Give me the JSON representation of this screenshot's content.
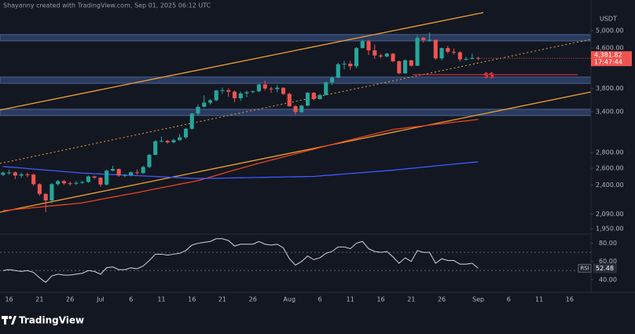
{
  "header": "Shayanny created with TradingView.com, Sep 01, 2025 06:12 UTC",
  "footer": "TradingView",
  "chart_data": {
    "type": "candlestick",
    "currency": "USDT",
    "annotation": "$$",
    "last_label": "4,381.82",
    "countdown": "17:47:44",
    "up_color": "#26a69a",
    "down_color": "#ef5350",
    "yscale": "log",
    "ylim": [
      1900,
      5780
    ],
    "yticks": [
      {
        "value": 5000,
        "label": "5,000.00"
      },
      {
        "value": 4600,
        "label": "4,600.00"
      },
      {
        "value": 3800,
        "label": "3,800.00"
      },
      {
        "value": 3400,
        "label": "3,400.00"
      },
      {
        "value": 2800,
        "label": "2,800.00"
      },
      {
        "value": 2600,
        "label": "2,600.00"
      },
      {
        "value": 2400,
        "label": "2,400.00"
      },
      {
        "value": 2090,
        "label": "2,090.00"
      },
      {
        "value": 1950,
        "label": "1,950.00"
      }
    ],
    "categories": [
      null,
      "16",
      null,
      null,
      null,
      null,
      "21",
      null,
      null,
      null,
      null,
      "26",
      null,
      null,
      null,
      null,
      "Jul",
      null,
      null,
      null,
      null,
      "6",
      null,
      null,
      null,
      null,
      "11",
      null,
      null,
      null,
      null,
      "16",
      null,
      null,
      null,
      null,
      "21",
      null,
      null,
      null,
      null,
      "26",
      null,
      null,
      null,
      null,
      null,
      "Aug",
      null,
      null,
      null,
      null,
      "6",
      null,
      null,
      null,
      null,
      "11",
      null,
      null,
      null,
      null,
      "16",
      null,
      null,
      null,
      null,
      "21",
      null,
      null,
      null,
      null,
      "26",
      null,
      null,
      null,
      null,
      null,
      "Sep",
      null,
      null,
      null,
      null,
      "6",
      null,
      null,
      null,
      null,
      "11",
      null,
      null,
      null,
      null,
      "16",
      null,
      null,
      null
    ],
    "open": [
      2520,
      2545,
      2548,
      2510,
      2525,
      2522,
      2410,
      2300,
      2230,
      2410,
      2445,
      2420,
      2415,
      2425,
      2435,
      2500,
      2485,
      2405,
      2570,
      2590,
      2510,
      2515,
      2550,
      2540,
      2615,
      2770,
      2955,
      2960,
      2940,
      2970,
      3010,
      3135,
      3370,
      3480,
      3550,
      3590,
      3760,
      3765,
      3740,
      3625,
      3710,
      3730,
      3745,
      3870,
      3795,
      3785,
      3810,
      3700,
      3490,
      3395,
      3500,
      3720,
      3610,
      3680,
      3910,
      3995,
      4260,
      4270,
      4220,
      4600,
      4750,
      4550,
      4440,
      4420,
      4480,
      4320,
      4080,
      4340,
      4230,
      4830,
      4780,
      4785,
      4380,
      4600,
      4520,
      4510,
      4360,
      4370,
      4390,
      null,
      null,
      null,
      null,
      null,
      null,
      null,
      null,
      null,
      null,
      null,
      null,
      null,
      null,
      null,
      null,
      null,
      null
    ],
    "high": [
      2560,
      2580,
      2560,
      2545,
      2545,
      2535,
      2420,
      2310,
      2425,
      2460,
      2460,
      2440,
      2445,
      2450,
      2510,
      2510,
      2490,
      2585,
      2630,
      2595,
      2530,
      2560,
      2585,
      2630,
      2785,
      2970,
      3020,
      2975,
      2990,
      3060,
      3150,
      3380,
      3520,
      3675,
      3610,
      3770,
      3810,
      3800,
      3760,
      3740,
      3760,
      3760,
      3880,
      3940,
      3830,
      3860,
      3810,
      3720,
      3510,
      3510,
      3730,
      3730,
      3700,
      3920,
      4020,
      4290,
      4330,
      4330,
      4620,
      4790,
      4780,
      4680,
      4480,
      4500,
      4490,
      4340,
      4360,
      4350,
      4880,
      4850,
      4955,
      4790,
      4610,
      4650,
      4590,
      4530,
      4410,
      4480,
      4410,
      null,
      null,
      null,
      null,
      null,
      null,
      null,
      null,
      null,
      null,
      null,
      null,
      null,
      null,
      null,
      null,
      null,
      null
    ],
    "low": [
      2505,
      2520,
      2470,
      2480,
      2490,
      2390,
      2280,
      2110,
      2200,
      2390,
      2400,
      2390,
      2400,
      2410,
      2425,
      2470,
      2380,
      2395,
      2560,
      2495,
      2490,
      2500,
      2520,
      2530,
      2600,
      2765,
      2940,
      2920,
      2925,
      2960,
      2990,
      3120,
      3340,
      3470,
      3520,
      3570,
      3700,
      3650,
      3560,
      3580,
      3640,
      3710,
      3730,
      3760,
      3720,
      3730,
      3680,
      3480,
      3355,
      3380,
      3490,
      3590,
      3600,
      3670,
      3860,
      3990,
      4160,
      4150,
      4180,
      4590,
      4450,
      4370,
      4380,
      4400,
      4300,
      4060,
      4070,
      4210,
      4220,
      4720,
      4740,
      4350,
      4340,
      4480,
      4460,
      4320,
      4330,
      4360,
      4340,
      null,
      null,
      null,
      null,
      null,
      null,
      null,
      null,
      null,
      null,
      null,
      null,
      null,
      null,
      null,
      null,
      null,
      null
    ],
    "close": [
      2545,
      2548,
      2510,
      2525,
      2522,
      2410,
      2300,
      2230,
      2410,
      2445,
      2420,
      2415,
      2425,
      2435,
      2500,
      2485,
      2405,
      2570,
      2590,
      2510,
      2515,
      2550,
      2540,
      2615,
      2770,
      2955,
      2960,
      2940,
      2970,
      3010,
      3135,
      3370,
      3480,
      3550,
      3590,
      3760,
      3765,
      3740,
      3625,
      3710,
      3730,
      3745,
      3870,
      3795,
      3785,
      3810,
      3700,
      3490,
      3395,
      3500,
      3720,
      3610,
      3680,
      3910,
      3995,
      4260,
      4270,
      4220,
      4600,
      4750,
      4550,
      4440,
      4420,
      4480,
      4320,
      4080,
      4340,
      4230,
      4830,
      4780,
      4785,
      4380,
      4600,
      4520,
      4510,
      4360,
      4370,
      4390,
      4381.82,
      null,
      null,
      null,
      null,
      null,
      null,
      null,
      null,
      null,
      null,
      null,
      null,
      null,
      null,
      null,
      null,
      null,
      null
    ],
    "lines": [
      {
        "color": "#e8431f",
        "values": [
          2125,
          2131,
          2137,
          2143,
          2149,
          2155,
          2161,
          2168,
          2174,
          2180,
          2186,
          2192,
          2198,
          2205,
          2217,
          2229,
          2242,
          2254,
          2266,
          2278,
          2291,
          2303,
          2315,
          2329,
          2342,
          2356,
          2369,
          2383,
          2396,
          2410,
          2423,
          2437,
          2450,
          2471,
          2492,
          2513,
          2534,
          2556,
          2577,
          2598,
          2619,
          2640,
          2661,
          2681,
          2702,
          2722,
          2743,
          2763,
          2784,
          2804,
          2825,
          2845,
          2867,
          2888,
          2910,
          2931,
          2953,
          2974,
          2996,
          3017,
          3039,
          3060,
          3082,
          3103,
          3125,
          3136,
          3147,
          3158,
          3168,
          3179,
          3190,
          3201,
          3212,
          3223,
          3234,
          3245,
          3255,
          3266,
          3277,
          null,
          null,
          null,
          null,
          null,
          null,
          null,
          null,
          null,
          null,
          null,
          null,
          null,
          null,
          null,
          null,
          null,
          null
        ]
      },
      {
        "color": "#3d5afe",
        "values": [
          2620,
          2614,
          2608,
          2602,
          2595,
          2589,
          2583,
          2577,
          2571,
          2565,
          2558,
          2552,
          2546,
          2540,
          2537,
          2533,
          2530,
          2526,
          2523,
          2520,
          2516,
          2513,
          2509,
          2506,
          2502,
          2499,
          2496,
          2492,
          2489,
          2485,
          2482,
          2478,
          2475,
          2476,
          2478,
          2479,
          2480,
          2481,
          2483,
          2484,
          2485,
          2487,
          2488,
          2489,
          2491,
          2492,
          2493,
          2495,
          2496,
          2497,
          2499,
          2500,
          2506,
          2512,
          2517,
          2523,
          2529,
          2535,
          2540,
          2546,
          2552,
          2558,
          2563,
          2569,
          2575,
          2583,
          2590,
          2598,
          2605,
          2613,
          2620,
          2628,
          2635,
          2643,
          2650,
          2658,
          2665,
          2673,
          2680,
          null,
          null,
          null,
          null,
          null,
          null,
          null,
          null,
          null,
          null,
          null,
          null,
          null,
          null,
          null,
          null,
          null,
          null
        ]
      }
    ],
    "rsi": {
      "type": "line",
      "label": "RSI",
      "color": "#d1d4dc",
      "ylim": [
        26,
        90
      ],
      "yticks": [
        {
          "value": 80,
          "label": "80.00"
        },
        {
          "value": 60,
          "label": "60.00"
        },
        {
          "value": 40,
          "label": "40.00"
        }
      ],
      "bands": [
        70,
        50
      ],
      "values": [
        50,
        51,
        50,
        49,
        50,
        48,
        42,
        37,
        44,
        46,
        45,
        45,
        46,
        47,
        50,
        49,
        46,
        53,
        54,
        51,
        51,
        53,
        52,
        55,
        61,
        68,
        68,
        67,
        68,
        69,
        72,
        78,
        80,
        81,
        82,
        85,
        85,
        83,
        77,
        79,
        79,
        79,
        82,
        79,
        78,
        79,
        75,
        63,
        56,
        60,
        66,
        62,
        64,
        69,
        71,
        76,
        76,
        74,
        80,
        82,
        74,
        71,
        70,
        71,
        65,
        58,
        64,
        60,
        72,
        70,
        70,
        58,
        63,
        61,
        61,
        57,
        57,
        58,
        52.48,
        null,
        null,
        null,
        null,
        null,
        null,
        null,
        null,
        null,
        null,
        null,
        null,
        null,
        null,
        null,
        null,
        null,
        null
      ]
    }
  }
}
